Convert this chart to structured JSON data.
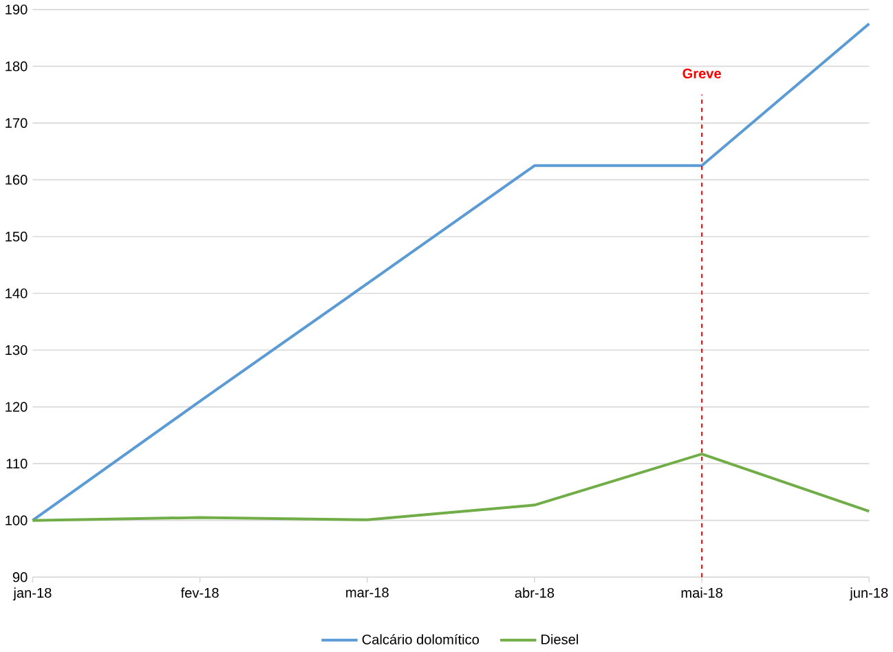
{
  "chart_data": {
    "type": "line",
    "categories": [
      "jan-18",
      "fev-18",
      "mar-18",
      "abr-18",
      "mai-18",
      "jun-18"
    ],
    "series": [
      {
        "name": "Calcário dolomítico",
        "color": "#5b9bd5",
        "values": [
          100,
          121,
          141.7,
          162.5,
          162.5,
          187.5
        ]
      },
      {
        "name": "Diesel",
        "color": "#70ad47",
        "values": [
          100,
          100.5,
          100.1,
          102.7,
          111.7,
          101.6
        ]
      }
    ],
    "ylim": [
      90,
      190
    ],
    "yticks": [
      90,
      100,
      110,
      120,
      130,
      140,
      150,
      160,
      170,
      180,
      190
    ],
    "grid": "y",
    "legend": "bottom",
    "marker": "none",
    "line_style": "solid",
    "ref_lines": [
      {
        "axis": "x",
        "value": "mai-18",
        "label": "Greve",
        "color": "#ff0000",
        "line_style": "dashed"
      }
    ]
  }
}
